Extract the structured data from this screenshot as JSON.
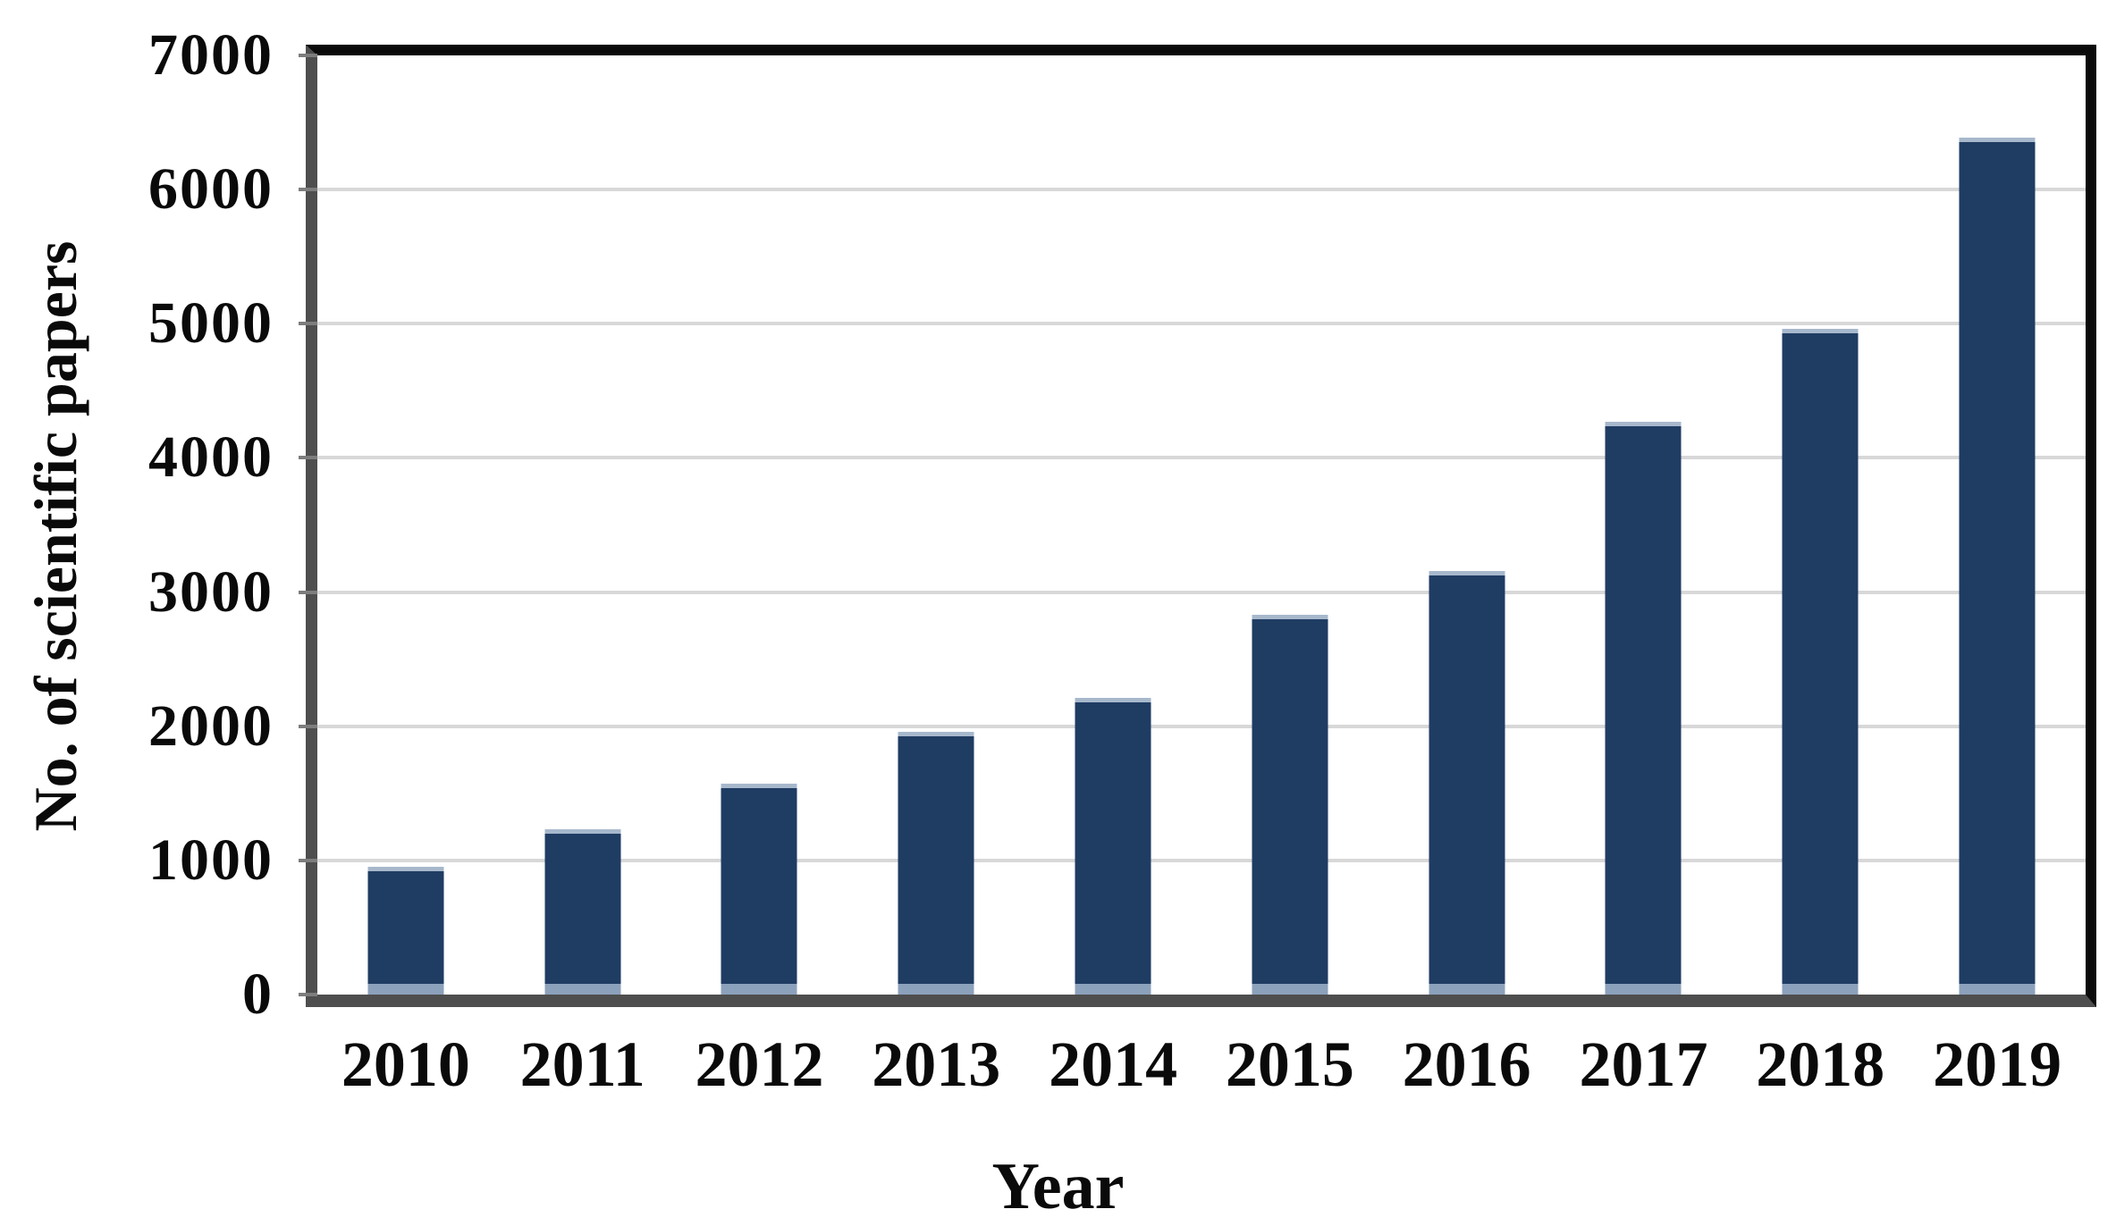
{
  "chart_data": {
    "type": "bar",
    "title": "",
    "xlabel": "Year",
    "ylabel": "No. of scientific papers",
    "categories": [
      "2010",
      "2011",
      "2012",
      "2013",
      "2014",
      "2015",
      "2016",
      "2017",
      "2018",
      "2019"
    ],
    "values": [
      950,
      1230,
      1570,
      1960,
      2210,
      2830,
      3160,
      4270,
      4960,
      6390
    ],
    "ylim": [
      0,
      7000
    ],
    "ytick_interval": 1000,
    "yticks": [
      "0",
      "1000",
      "2000",
      "3000",
      "4000",
      "5000",
      "6000",
      "7000"
    ],
    "grid": true,
    "legend": "none"
  },
  "colors": {
    "bar_fill": "#1f3c63",
    "bar_top_edge": "#a7b8cc",
    "bar_bottom_edge": "#8ca1bb",
    "gridline": "#d8d8d8",
    "frame_black": "#0a0a0a",
    "axis_gray": "#4e4e4e",
    "tick_gray": "#7d7d7d",
    "text": "#0a0a0a",
    "background": "#ffffff"
  }
}
